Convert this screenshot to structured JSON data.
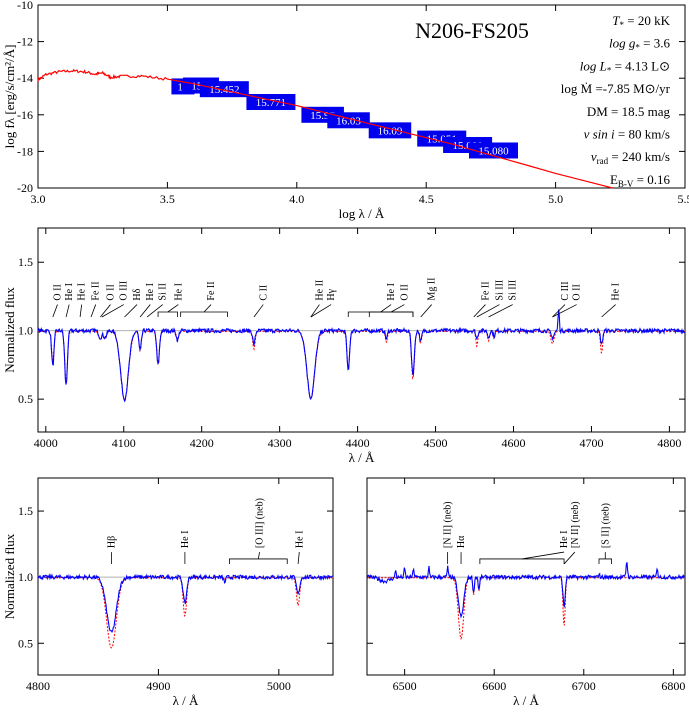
{
  "chart_data": [
    {
      "type": "line",
      "panel": "sed",
      "title": "N206-FS205",
      "xlabel": "log λ / Å",
      "ylabel": "log fλ [erg/s/cm²/Å]",
      "xlim": [
        3.0,
        5.5
      ],
      "ylim": [
        -20,
        -10
      ],
      "xticks": [
        "3.0",
        "3.5",
        "4.0",
        "4.5",
        "5.0",
        "5.5"
      ],
      "yticks": [
        "-10",
        "-12",
        "-14",
        "-16",
        "-18",
        "-20"
      ],
      "model_color": "#ff0000",
      "photometry_color": "#0000ee",
      "model_points": [
        [
          3.0,
          -14.1
        ],
        [
          3.03,
          -13.8
        ],
        [
          3.08,
          -13.65
        ],
        [
          3.13,
          -13.6
        ],
        [
          3.18,
          -13.65
        ],
        [
          3.22,
          -13.78
        ],
        [
          3.25,
          -13.72
        ],
        [
          3.28,
          -13.95
        ],
        [
          3.32,
          -13.9
        ],
        [
          3.4,
          -13.88
        ],
        [
          3.5,
          -14.05
        ],
        [
          3.6,
          -14.3
        ],
        [
          3.8,
          -14.9
        ],
        [
          4.0,
          -15.5
        ],
        [
          4.2,
          -16.2
        ],
        [
          4.4,
          -16.9
        ],
        [
          4.6,
          -17.6
        ],
        [
          4.8,
          -18.4
        ],
        [
          5.0,
          -19.2
        ],
        [
          5.22,
          -20.0
        ]
      ],
      "photometry": [
        {
          "label": "14",
          "x": 3.56,
          "y": -14.45
        },
        {
          "label": "15.5",
          "x": 3.63,
          "y": -14.4
        },
        {
          "label": "15.452",
          "x": 3.72,
          "y": -14.6
        },
        {
          "label": "15.771",
          "x": 3.9,
          "y": -15.3
        },
        {
          "label": "15.97",
          "x": 4.1,
          "y": -16.0
        },
        {
          "label": "16.03",
          "x": 4.2,
          "y": -16.3
        },
        {
          "label": "16.09",
          "x": 4.36,
          "y": -16.85
        },
        {
          "label": "15.051",
          "x": 4.56,
          "y": -17.3
        },
        {
          "label": "15.080",
          "x": 4.66,
          "y": -17.65
        },
        {
          "label": "15.080",
          "x": 4.76,
          "y": -17.95
        }
      ],
      "parameters": [
        {
          "name": "T",
          "sub": "*",
          "value": " = 20 kK"
        },
        {
          "name": "log g",
          "sub": "*",
          "value": " =  3.6"
        },
        {
          "name": "log L",
          "sub": "*",
          "value": " = 4.13 L⊙"
        },
        {
          "name": "log Ṁ",
          "sub": "",
          "value": "  =-7.85 M⊙/yr"
        },
        {
          "name": "DM",
          "sub": "",
          "value": " = 18.5 mag"
        },
        {
          "name": "v sin i",
          "sub": "",
          "value": " = 80 km/s"
        },
        {
          "name": "v",
          "sub": "rad",
          "value": " = 240 km/s"
        },
        {
          "name": "E",
          "sub": "B-V",
          "value": "  = 0.16"
        }
      ]
    },
    {
      "type": "line",
      "panel": "blue",
      "xlabel": "λ / Å",
      "ylabel": "Normalized flux",
      "xlim": [
        3990,
        4820
      ],
      "ylim": [
        0.26,
        1.75
      ],
      "xticks": [
        4000,
        4100,
        4200,
        4300,
        4400,
        4500,
        4600,
        4700,
        4800
      ],
      "yticks": [
        0.5,
        1.0,
        1.5
      ],
      "observed_color": "#0000ff",
      "model_color": "#ff0000",
      "lines": [
        [
          4009,
          0.26,
          0.22,
          1.5
        ],
        [
          4026,
          0.4,
          0.38,
          1.7
        ],
        [
          4070,
          0.05,
          0.06,
          2
        ],
        [
          4076,
          0.05,
          0.05,
          2
        ],
        [
          4101,
          0.5,
          0.5,
          5
        ],
        [
          4121,
          0.15,
          0.14,
          1.5
        ],
        [
          4144,
          0.25,
          0.24,
          1.7
        ],
        [
          4169,
          0.07,
          0.06,
          1.5
        ],
        [
          4267,
          0.1,
          0.13,
          1.5
        ],
        [
          4340,
          0.49,
          0.49,
          5
        ],
        [
          4388,
          0.3,
          0.28,
          1.6
        ],
        [
          4437,
          0.06,
          0.08,
          1.3
        ],
        [
          4471,
          0.32,
          0.35,
          1.8
        ],
        [
          4481,
          0.08,
          0.08,
          1.3
        ],
        [
          4553,
          0.06,
          0.11,
          1.2
        ],
        [
          4568,
          0.05,
          0.07,
          1.2
        ],
        [
          4575,
          0.04,
          0.05,
          1.2
        ],
        [
          4650,
          0.05,
          0.09,
          2
        ],
        [
          4658,
          -0.16,
          0,
          0.8
        ],
        [
          4713,
          0.1,
          0.16,
          1.4
        ]
      ],
      "labels": [
        {
          "text": "O II",
          "x": 4015,
          "line": 4009
        },
        {
          "text": "He I",
          "x": 4030,
          "line": 4026
        },
        {
          "text": "He I",
          "x": 4046,
          "line": 4044
        },
        {
          "text": "Fe II",
          "x": 4064,
          "line": 4058
        },
        {
          "text": "O II",
          "x": 4083,
          "line": 4070
        },
        {
          "text": "O III",
          "x": 4100,
          "line": 4072
        },
        {
          "text": "Hδ",
          "x": 4117,
          "line": 4101
        },
        {
          "text": "He I",
          "x": 4134,
          "line": 4121
        },
        {
          "text": "Si II",
          "x": 4150,
          "line": 4130
        },
        {
          "text": "He I",
          "x": 4170,
          "line": 4144,
          "line2": 4169
        },
        {
          "text": "Fe II",
          "x": 4212,
          "line": 4173,
          "line2": 4233
        },
        {
          "text": "C II",
          "x": 4279,
          "line": 4267
        },
        {
          "text": "He II",
          "x": 4351,
          "line": 4340
        },
        {
          "text": "Hγ",
          "x": 4366,
          "line": 4340
        },
        {
          "text": "He I",
          "x": 4443,
          "line": 4388,
          "line2": 4471
        },
        {
          "text": "O II",
          "x": 4460,
          "line": 4415,
          "line2": 4471
        },
        {
          "text": "Mg II",
          "x": 4495,
          "line": 4481
        },
        {
          "text": "Fe II",
          "x": 4564,
          "line": 4549
        },
        {
          "text": "Si III",
          "x": 4582,
          "line": 4553
        },
        {
          "text": "Si III",
          "x": 4599,
          "line": 4568
        },
        {
          "text": "C III",
          "x": 4666,
          "line": 4650
        },
        {
          "text": "O II",
          "x": 4681,
          "line": 4650
        },
        {
          "text": "He I",
          "x": 4731,
          "line": 4713
        }
      ]
    },
    {
      "type": "line",
      "panel": "hbeta",
      "xlabel": "λ / Å",
      "ylabel": "Normalized flux",
      "xlim": [
        4800,
        5045
      ],
      "ylim": [
        0.26,
        1.75
      ],
      "xticks": [
        4800,
        4900,
        5000
      ],
      "yticks": [
        0.5,
        1.0,
        1.5
      ],
      "lines": [
        [
          4861,
          0.42,
          0.53,
          4
        ],
        [
          4922,
          0.2,
          0.29,
          1.4
        ],
        [
          4955,
          0.04,
          0.01,
          0.8
        ],
        [
          5016,
          0.13,
          0.21,
          1.3
        ]
      ],
      "labels": [
        {
          "text": "Hβ",
          "x": 4861,
          "line": 4861
        },
        {
          "text": "He I",
          "x": 4922,
          "line": 4922
        },
        {
          "text": "[O III] (neb)",
          "x": 4984,
          "line": 4959,
          "line2": 5007
        },
        {
          "text": "He I",
          "x": 5017,
          "line": 5016
        }
      ]
    },
    {
      "type": "line",
      "panel": "halpha",
      "xlabel": "λ / Å",
      "ylabel": "",
      "xlim": [
        6458,
        6813
      ],
      "ylim": [
        0.26,
        1.75
      ],
      "xticks": [
        6500,
        6600,
        6700,
        6800
      ],
      "yticks": [
        0.5,
        1.0,
        1.5
      ],
      "lines": [
        [
          6563,
          0.3,
          0.46,
          3
        ],
        [
          6577,
          0.12,
          0.13,
          0.8
        ],
        [
          6583,
          0.1,
          0.1,
          0.8
        ],
        [
          6678,
          0.23,
          0.37,
          1.2
        ],
        [
          6490,
          -0.06,
          0,
          0.6
        ],
        [
          6500,
          -0.07,
          0,
          0.6
        ],
        [
          6510,
          -0.07,
          0,
          0.6
        ],
        [
          6527,
          -0.08,
          0,
          0.6
        ],
        [
          6548,
          -0.08,
          0,
          0.6
        ],
        [
          6717,
          -0.03,
          0,
          0.6
        ],
        [
          6748,
          -0.12,
          0,
          0.8
        ],
        [
          6782,
          -0.08,
          0,
          0.6
        ],
        [
          6478,
          0.03,
          0,
          6
        ]
      ],
      "labels": [
        {
          "text": "[N II] (neb)",
          "x": 6548,
          "line": 6548
        },
        {
          "text": "Hα",
          "x": 6563,
          "line": 6563
        },
        {
          "text": "He I",
          "x": 6678,
          "line": 6584,
          "line2": 6678
        },
        {
          "text": "[N II] (neb)",
          "x": 6690,
          "line": 6678
        },
        {
          "text": "[S II] (neb)",
          "x": 6724,
          "line": 6717,
          "line2": 6731
        }
      ]
    }
  ]
}
